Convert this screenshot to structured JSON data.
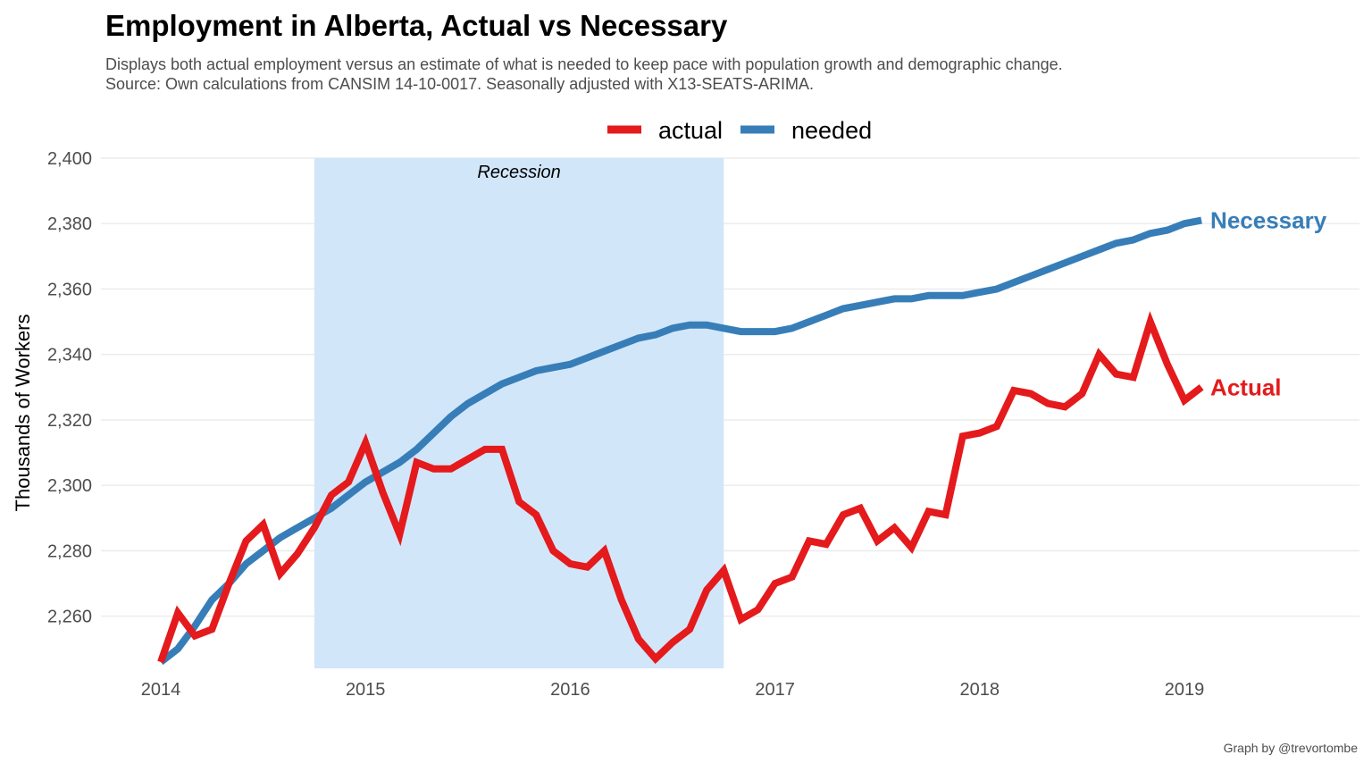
{
  "title": "Employment in Alberta, Actual vs Necessary",
  "subtitle_line1": "Displays both actual employment versus an estimate of what is needed to keep pace with population growth and demographic change.",
  "subtitle_line2": "Source: Own calculations from CANSIM 14-10-0017. Seasonally adjusted with X13-SEATS-ARIMA.",
  "caption": "Graph by @trevortombe",
  "colors": {
    "actual": "#e41a1c",
    "needed": "#377eb8",
    "recession": "#d2e6fa",
    "grid": "#ebebeb"
  },
  "chart_data": {
    "type": "line",
    "title": "Employment in Alberta, Actual vs Necessary",
    "xlabel": "",
    "ylabel": "Thousands of Workers",
    "xlim": [
      2013.75,
      2019.85
    ],
    "ylim": [
      2244,
      2400
    ],
    "x_ticks": [
      2014,
      2015,
      2016,
      2017,
      2018,
      2019
    ],
    "y_ticks": [
      2260,
      2280,
      2300,
      2320,
      2340,
      2360,
      2380,
      2400
    ],
    "y_tick_labels": [
      "2,260",
      "2,280",
      "2,300",
      "2,320",
      "2,340",
      "2,360",
      "2,380",
      "2,400"
    ],
    "grid": true,
    "legend_position": "top",
    "legend": [
      {
        "key": "actual",
        "label": "actual"
      },
      {
        "key": "needed",
        "label": "needed"
      }
    ],
    "recession": {
      "start": 2014.75,
      "end": 2016.75,
      "label": "Recession"
    },
    "series": [
      {
        "key": "actual",
        "name": "actual",
        "end_label": "Actual",
        "x_start": 2014.0,
        "x_step": 0.08333,
        "values": [
          2246,
          2261,
          2254,
          2256,
          2270,
          2283,
          2288,
          2273,
          2279,
          2287,
          2297,
          2301,
          2313,
          2298,
          2285,
          2307,
          2305,
          2305,
          2308,
          2311,
          2311,
          2295,
          2291,
          2280,
          2276,
          2275,
          2280,
          2265,
          2253,
          2247,
          2252,
          2256,
          2268,
          2274,
          2259,
          2262,
          2270,
          2272,
          2283,
          2282,
          2291,
          2293,
          2283,
          2287,
          2281,
          2292,
          2291,
          2315,
          2316,
          2318,
          2329,
          2328,
          2325,
          2324,
          2328,
          2340,
          2334,
          2333,
          2350,
          2337,
          2326,
          2330
        ]
      },
      {
        "key": "needed",
        "name": "needed",
        "end_label": "Necessary",
        "x_start": 2014.0,
        "x_step": 0.08333,
        "values": [
          2246,
          2250,
          2257,
          2265,
          2270,
          2276,
          2280,
          2284,
          2287,
          2290,
          2293,
          2297,
          2301,
          2304,
          2307,
          2311,
          2316,
          2321,
          2325,
          2328,
          2331,
          2333,
          2335,
          2336,
          2337,
          2339,
          2341,
          2343,
          2345,
          2346,
          2348,
          2349,
          2349,
          2348,
          2347,
          2347,
          2347,
          2348,
          2350,
          2352,
          2354,
          2355,
          2356,
          2357,
          2357,
          2358,
          2358,
          2358,
          2359,
          2360,
          2362,
          2364,
          2366,
          2368,
          2370,
          2372,
          2374,
          2375,
          2377,
          2378,
          2380,
          2381
        ]
      }
    ]
  }
}
